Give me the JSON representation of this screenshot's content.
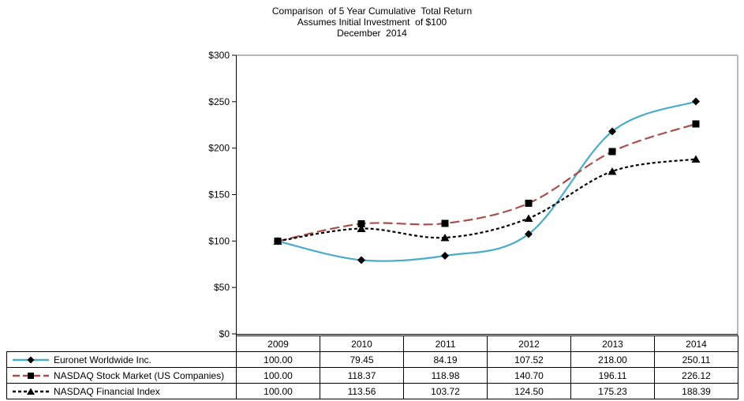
{
  "title": {
    "line1": "Comparison  of 5 Year Cumulative  Total Return",
    "line2": "Assumes Initial Investment  of $100",
    "line3": "December  2014"
  },
  "chart_data": {
    "type": "line",
    "smoothed": true,
    "grid": false,
    "legend_position": "left-of-data-table",
    "title": "Comparison of 5 Year Cumulative Total Return",
    "subtitle": "Assumes Initial Investment of $100",
    "date_label": "December 2014",
    "categories": [
      "2009",
      "2010",
      "2011",
      "2012",
      "2013",
      "2014"
    ],
    "series": [
      {
        "name": "Euronet Worldwide Inc.",
        "values": [
          100.0,
          79.45,
          84.19,
          107.52,
          218.0,
          250.11
        ],
        "display_values": [
          "100.00",
          "79.45",
          "84.19",
          "107.52",
          "218.00",
          "250.11"
        ],
        "line_color": "#4BACC6",
        "line_style": "solid",
        "marker": "diamond",
        "marker_color": "#000000"
      },
      {
        "name": "NASDAQ Stock Market (US Companies)",
        "values": [
          100.0,
          118.37,
          118.98,
          140.7,
          196.11,
          226.12
        ],
        "display_values": [
          "100.00",
          "118.37",
          "118.98",
          "140.70",
          "196.11",
          "226.12"
        ],
        "line_color": "#A6504A",
        "line_style": "long-dash",
        "marker": "square",
        "marker_color": "#000000"
      },
      {
        "name": "NASDAQ Financial Index",
        "values": [
          100.0,
          113.56,
          103.72,
          124.5,
          175.23,
          188.39
        ],
        "display_values": [
          "100.00",
          "113.56",
          "103.72",
          "124.50",
          "175.23",
          "188.39"
        ],
        "line_color": "#000000",
        "line_style": "short-dash",
        "marker": "triangle",
        "marker_color": "#000000"
      }
    ],
    "y_axis": {
      "min": 0,
      "max": 300,
      "step": 50,
      "tick_labels": [
        "$0",
        "$50",
        "$100",
        "$150",
        "$200",
        "$250",
        "$300"
      ]
    },
    "x_axis": {
      "tick_labels": [
        "2009",
        "2010",
        "2011",
        "2012",
        "2013",
        "2014"
      ]
    },
    "axis_color": "#000000",
    "plot_border_color": "#8C8C8C"
  }
}
